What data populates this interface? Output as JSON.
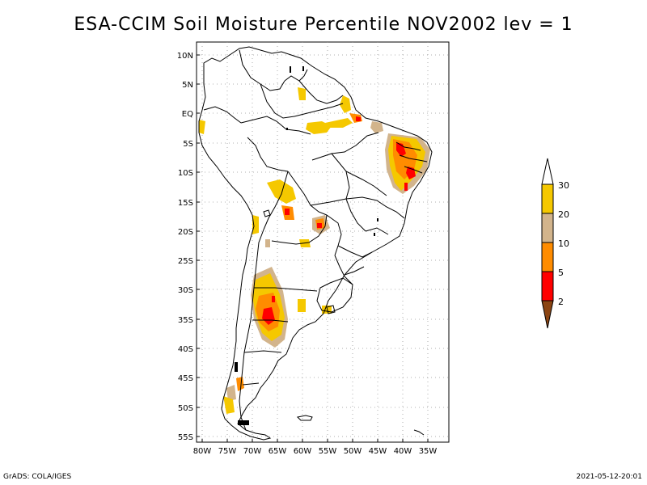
{
  "title": "ESA-CCIM Soil Moisture Percentile NOV2002 lev = 1",
  "footer": {
    "left": "GrADS: COLA/IGES",
    "right": "2021-05-12-20:01"
  },
  "axes": {
    "lat_labels": [
      "10N",
      "5N",
      "EQ",
      "5S",
      "10S",
      "15S",
      "20S",
      "25S",
      "30S",
      "35S",
      "40S",
      "45S",
      "50S",
      "55S"
    ],
    "lon_labels": [
      "80W",
      "75W",
      "70W",
      "65W",
      "60W",
      "55W",
      "50W",
      "45W",
      "40W",
      "35W"
    ]
  },
  "legend": {
    "labels": [
      "30",
      "20",
      "10",
      "5",
      "2"
    ],
    "colors": {
      "above_30": "#ffffff",
      "20_30": "#f5c800",
      "10_20": "#d2b48c",
      "5_10": "#ff8c00",
      "2_5": "#ff0000",
      "below_2": "#8b4513"
    }
  },
  "colors": {
    "coast": "#000000",
    "grid": "#999999",
    "yellow": "#f5c800",
    "tan": "#d2b48c",
    "orange": "#ff8c00",
    "red": "#ff0000",
    "brown": "#8b4513"
  }
}
